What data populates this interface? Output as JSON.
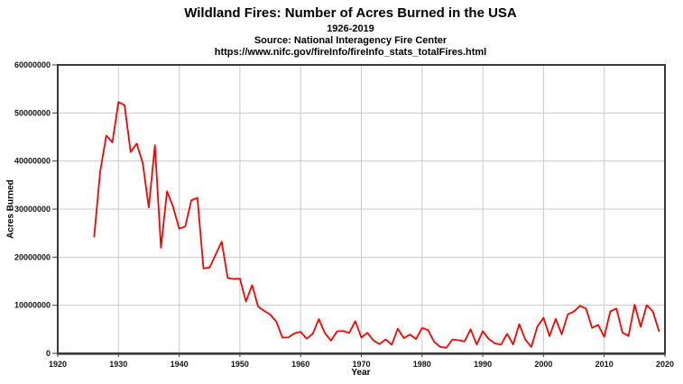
{
  "chart_data": {
    "type": "line",
    "title": "Wildland Fires: Number of Acres Burned in the USA",
    "subtitle": "1926-2019",
    "source": "Source: National Interagency Fire Center",
    "url": "https://www.nifc.gov/fireInfo/fireInfo_stats_totalFires.html",
    "xlabel": "Year",
    "ylabel": "Acres Burned",
    "xlim": [
      1920,
      2020
    ],
    "ylim": [
      0,
      60000000
    ],
    "x_ticks": [
      1920,
      1930,
      1940,
      1950,
      1960,
      1970,
      1980,
      1990,
      2000,
      2010,
      2020
    ],
    "y_ticks": [
      0,
      10000000,
      20000000,
      30000000,
      40000000,
      50000000,
      60000000
    ],
    "grid": true,
    "legend": "none",
    "line_color": "#ff0000",
    "grid_color": "#c9c9c9",
    "frame_color": "#3a3a3a",
    "series_name": "Acres Burned",
    "years": [
      1926,
      1927,
      1928,
      1929,
      1930,
      1931,
      1932,
      1933,
      1934,
      1935,
      1936,
      1937,
      1938,
      1939,
      1940,
      1941,
      1942,
      1943,
      1944,
      1945,
      1946,
      1947,
      1948,
      1949,
      1950,
      1951,
      1952,
      1953,
      1954,
      1955,
      1956,
      1957,
      1958,
      1959,
      1960,
      1961,
      1962,
      1963,
      1964,
      1965,
      1966,
      1967,
      1968,
      1969,
      1970,
      1971,
      1972,
      1973,
      1974,
      1975,
      1976,
      1977,
      1978,
      1979,
      1980,
      1981,
      1982,
      1983,
      1984,
      1985,
      1986,
      1987,
      1988,
      1989,
      1990,
      1991,
      1992,
      1993,
      1994,
      1995,
      1996,
      1997,
      1998,
      1999,
      2000,
      2001,
      2002,
      2003,
      2004,
      2005,
      2006,
      2007,
      2008,
      2009,
      2010,
      2011,
      2012,
      2013,
      2014,
      2015,
      2016,
      2017,
      2018,
      2019
    ],
    "values": [
      24292000,
      37919000,
      45281000,
      43890000,
      52266000,
      51607000,
      41869000,
      43639000,
      39575000,
      30335000,
      43274000,
      21981000,
      33701000,
      30449000,
      25936000,
      26385000,
      31854000,
      32333000,
      17671000,
      17829000,
      20536000,
      23226000,
      15660000,
      15455000,
      15519000,
      10781000,
      14187000,
      9698000,
      8836000,
      8067000,
      6576000,
      3278000,
      3316000,
      4156000,
      4478188,
      3036219,
      4078894,
      7120768,
      4197309,
      2652112,
      4574389,
      4658586,
      4231996,
      6689081,
      3278565,
      4278472,
      2641166,
      1915273,
      2879095,
      1791327,
      5109926,
      3152644,
      3910913,
      2986826,
      5260825,
      4814206,
      2382036,
      1323666,
      1148409,
      2896147,
      2719162,
      2447296,
      5009290,
      1827310,
      4621621,
      2953578,
      2069929,
      1797574,
      4073579,
      1840546,
      6065998,
      2856959,
      1329704,
      5626093,
      7393493,
      3570911,
      7184712,
      3960842,
      8097880,
      8689389,
      9873745,
      9328045,
      5292468,
      5921786,
      3422724,
      8711367,
      9326238,
      4319546,
      3595613,
      10125149,
      5509995,
      10026086,
      8767492,
      4664364
    ]
  }
}
